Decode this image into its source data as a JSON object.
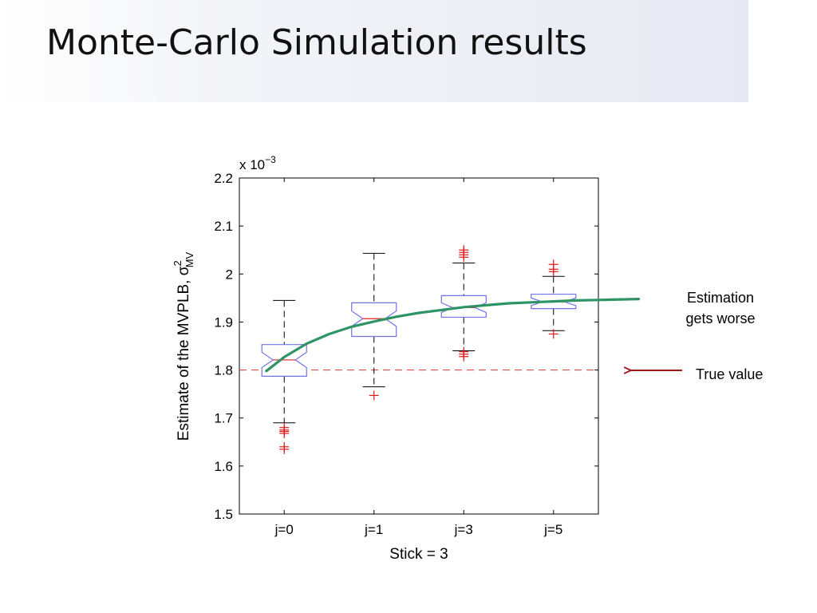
{
  "slide": {
    "title": "Monte-Carlo Simulation results"
  },
  "annotations": {
    "estimation_line1": "Estimation",
    "estimation_line2": "gets worse",
    "true_value": "True value"
  },
  "colors": {
    "box": "#6f73e6",
    "median": "#e02020",
    "outlier": "#e01818",
    "trend": "#2e9466",
    "true_line": "#e64c4c",
    "arrow": "#a01818"
  },
  "chart_data": {
    "type": "box",
    "xlabel": "Stick = 3",
    "ylabel": "Estimate of the MVPLB, σ",
    "ylabel_sup": "2",
    "ylabel_sub": "MV",
    "exponent_prefix": "x 10",
    "exponent_power": "−3",
    "ylim": [
      1.5,
      2.2
    ],
    "yticks": [
      1.5,
      1.6,
      1.7,
      1.8,
      1.9,
      2.0,
      2.1,
      2.2
    ],
    "ytick_labels": [
      "1.5",
      "1.6",
      "1.7",
      "1.8",
      "1.9",
      "2",
      "2.1",
      "2.2"
    ],
    "categories": [
      "j=0",
      "j=1",
      "j=3",
      "j=5"
    ],
    "boxes": [
      {
        "whisker_high": 1.945,
        "q3": 1.853,
        "median": 1.821,
        "q1": 1.787,
        "whisker_low": 1.69,
        "notch": 0.016,
        "outliers": [
          1.68,
          1.675,
          1.672,
          1.668,
          1.64,
          1.635
        ]
      },
      {
        "whisker_high": 2.043,
        "q3": 1.94,
        "median": 1.907,
        "q1": 1.87,
        "whisker_low": 1.765,
        "notch": 0.016,
        "outliers": [
          1.747
        ]
      },
      {
        "whisker_high": 2.023,
        "q3": 1.955,
        "median": 1.93,
        "q1": 1.91,
        "whisker_low": 1.84,
        "notch": 0.01,
        "outliers": [
          2.05,
          2.045,
          2.04,
          2.035,
          1.838,
          1.833,
          1.828
        ]
      },
      {
        "whisker_high": 1.995,
        "q3": 1.958,
        "median": 1.942,
        "q1": 1.928,
        "whisker_low": 1.882,
        "notch": 0.008,
        "outliers": [
          2.02,
          2.01,
          2.005,
          1.875
        ]
      }
    ],
    "true_value": 1.8,
    "trend_curve": [
      {
        "x": 0.8,
        "y": 1.798
      },
      {
        "x": 1.0,
        "y": 1.827
      },
      {
        "x": 1.25,
        "y": 1.855
      },
      {
        "x": 1.5,
        "y": 1.875
      },
      {
        "x": 1.75,
        "y": 1.89
      },
      {
        "x": 2.0,
        "y": 1.901
      },
      {
        "x": 2.25,
        "y": 1.911
      },
      {
        "x": 2.5,
        "y": 1.919
      },
      {
        "x": 2.75,
        "y": 1.925
      },
      {
        "x": 3.0,
        "y": 1.931
      },
      {
        "x": 3.25,
        "y": 1.935
      },
      {
        "x": 3.5,
        "y": 1.939
      },
      {
        "x": 3.75,
        "y": 1.941
      },
      {
        "x": 4.0,
        "y": 1.943
      },
      {
        "x": 4.25,
        "y": 1.945
      },
      {
        "x": 4.5,
        "y": 1.946
      },
      {
        "x": 4.95,
        "y": 1.948
      }
    ]
  }
}
